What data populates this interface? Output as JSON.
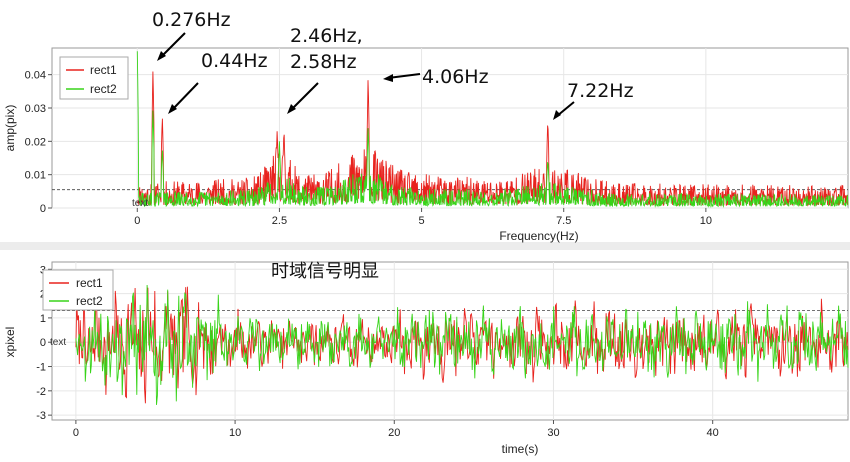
{
  "chart_data": [
    {
      "type": "line",
      "xlabel": "Frequency(Hz)",
      "ylabel": "amp(pix)",
      "xlim": [
        -1.5,
        12.5
      ],
      "ylim": [
        0,
        0.048
      ],
      "xticks": [
        0,
        2.5,
        5,
        7.5,
        10
      ],
      "xtick_labels": [
        "0",
        "2.5",
        "5",
        "7.5",
        "10"
      ],
      "yticks": [
        0,
        0.01,
        0.02,
        0.03,
        0.04
      ],
      "ytick_labels": [
        "0",
        "0.01",
        "0.02",
        "0.03",
        "0.04"
      ],
      "threshold": 0.0055,
      "legend": {
        "position": "top-left",
        "entries": [
          "rect1",
          "rect2"
        ]
      },
      "in_plot_label": "text",
      "series": [
        {
          "name": "rect1",
          "color": "#e8231e",
          "peaks": [
            {
              "x": 0.276,
              "y": 0.042
            },
            {
              "x": 0.44,
              "y": 0.028
            },
            {
              "x": 2.46,
              "y": 0.024
            },
            {
              "x": 2.58,
              "y": 0.024
            },
            {
              "x": 4.06,
              "y": 0.04
            },
            {
              "x": 7.22,
              "y": 0.027
            }
          ],
          "noise_level": 0.009
        },
        {
          "name": "rect2",
          "color": "#38d41a",
          "peaks": [
            {
              "x": 0.0,
              "y": 0.047
            },
            {
              "x": 0.276,
              "y": 0.03
            },
            {
              "x": 0.44,
              "y": 0.018
            },
            {
              "x": 2.5,
              "y": 0.02
            },
            {
              "x": 4.06,
              "y": 0.025
            },
            {
              "x": 7.22,
              "y": 0.015
            }
          ],
          "noise_level": 0.0055
        }
      ],
      "annotations": [
        {
          "text": "0.276Hz",
          "x": 0.276,
          "y": 0.042
        },
        {
          "text": "0.44Hz",
          "x": 0.44,
          "y": 0.028
        },
        {
          "text": "2.46Hz,",
          "x": 2.46,
          "y": 0.029
        },
        {
          "text": "2.58Hz",
          "x": 2.58,
          "y": 0.029
        },
        {
          "text": "4.06Hz",
          "x": 4.06,
          "y": 0.04
        },
        {
          "text": "7.22Hz",
          "x": 7.22,
          "y": 0.027
        }
      ]
    },
    {
      "type": "line",
      "xlabel": "time(s)",
      "ylabel": "xpixel",
      "xlim": [
        -1.5,
        48.5
      ],
      "ylim": [
        -3.2,
        3.3
      ],
      "xticks": [
        0,
        10,
        20,
        30,
        40
      ],
      "xtick_labels": [
        "0",
        "10",
        "20",
        "30",
        "40"
      ],
      "yticks": [
        -3,
        -2,
        -1,
        0,
        1,
        2,
        3
      ],
      "ytick_labels": [
        "-3",
        "-2",
        "-1",
        "0",
        "1",
        "2",
        "3"
      ],
      "threshold": 1.3,
      "legend": {
        "position": "top-left",
        "entries": [
          "rect1",
          "rect2"
        ]
      },
      "in_plot_label": "text",
      "series": [
        {
          "name": "rect1",
          "color": "#e8231e",
          "range": [
            -2.8,
            3.2
          ]
        },
        {
          "name": "rect2",
          "color": "#38d41a",
          "range": [
            -3.0,
            2.9
          ]
        }
      ]
    }
  ],
  "note": "时域信号明显"
}
